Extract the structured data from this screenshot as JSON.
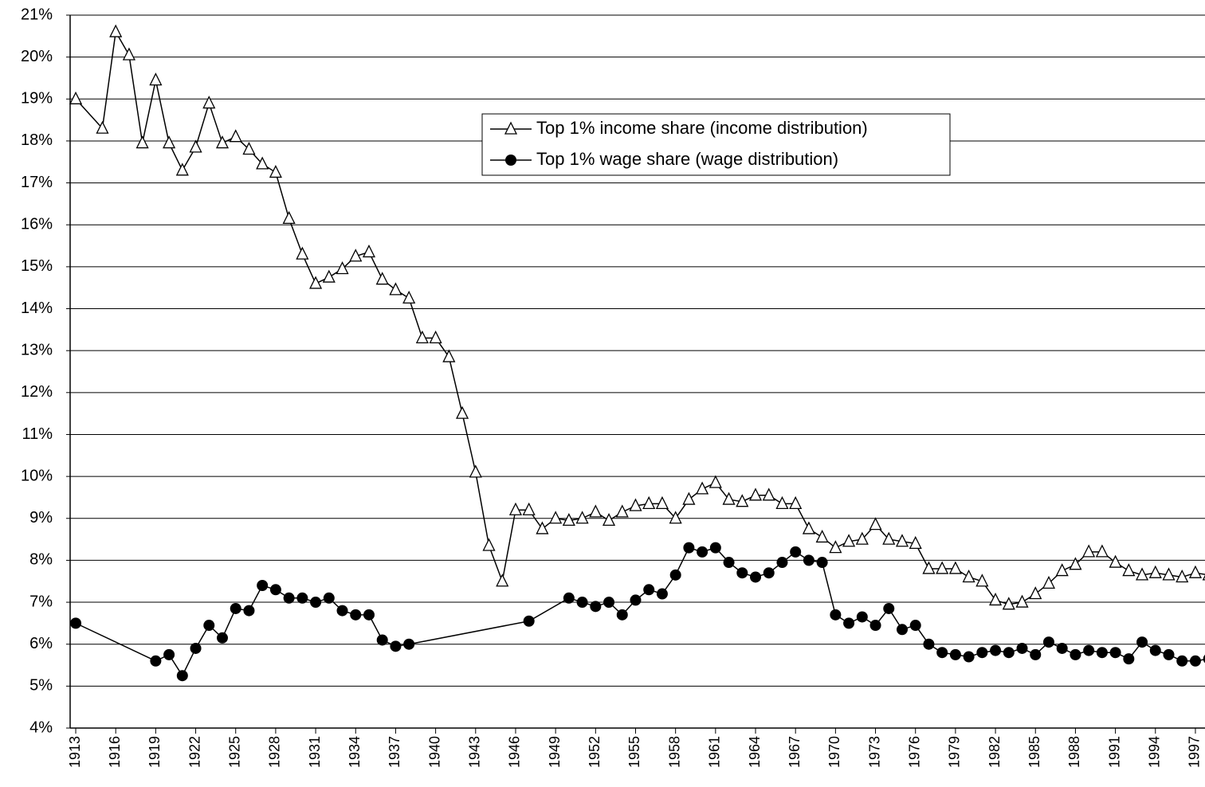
{
  "chart_data": {
    "type": "line",
    "ylim": [
      4,
      21
    ],
    "yticks": [
      {
        "value": 4,
        "label": "4%"
      },
      {
        "value": 5,
        "label": "5%"
      },
      {
        "value": 6,
        "label": "6%"
      },
      {
        "value": 7,
        "label": "7%"
      },
      {
        "value": 8,
        "label": "8%"
      },
      {
        "value": 9,
        "label": "9%"
      },
      {
        "value": 10,
        "label": "10%"
      },
      {
        "value": 11,
        "label": "11%"
      },
      {
        "value": 12,
        "label": "12%"
      },
      {
        "value": 13,
        "label": "13%"
      },
      {
        "value": 14,
        "label": "14%"
      },
      {
        "value": 15,
        "label": "15%"
      },
      {
        "value": 16,
        "label": "16%"
      },
      {
        "value": 17,
        "label": "17%"
      },
      {
        "value": 18,
        "label": "18%"
      },
      {
        "value": 19,
        "label": "19%"
      },
      {
        "value": 20,
        "label": "20%"
      },
      {
        "value": 21,
        "label": "21%"
      }
    ],
    "xlim": [
      1912.58,
      1997.72
    ],
    "xticks": [
      1913,
      1916,
      1919,
      1922,
      1925,
      1928,
      1931,
      1934,
      1937,
      1940,
      1943,
      1946,
      1949,
      1952,
      1955,
      1958,
      1961,
      1964,
      1967,
      1970,
      1973,
      1976,
      1979,
      1982,
      1985,
      1988,
      1991,
      1994,
      1997
    ],
    "grid": true,
    "legend": "top-center",
    "series": [
      {
        "name": "Top 1% income share (income distribution)",
        "color": "#000000",
        "marker": "triangle",
        "x": [
          1913,
          1915,
          1916,
          1917,
          1918,
          1919,
          1920,
          1921,
          1922,
          1923,
          1924,
          1925,
          1926,
          1927,
          1928,
          1929,
          1930,
          1931,
          1932,
          1933,
          1934,
          1935,
          1936,
          1937,
          1938,
          1939,
          1940,
          1941,
          1942,
          1943,
          1944,
          1945,
          1946,
          1947,
          1948,
          1949,
          1950,
          1951,
          1952,
          1953,
          1954,
          1955,
          1956,
          1957,
          1958,
          1959,
          1960,
          1961,
          1962,
          1963,
          1964,
          1965,
          1966,
          1967,
          1968,
          1969,
          1970,
          1971,
          1972,
          1973,
          1974,
          1975,
          1976,
          1977,
          1978,
          1979,
          1980,
          1981,
          1982,
          1983,
          1984,
          1985,
          1986,
          1987,
          1988,
          1989,
          1990,
          1991,
          1992,
          1993,
          1994,
          1995,
          1996,
          1997,
          1998
        ],
        "values": [
          19.0,
          18.3,
          20.6,
          20.05,
          17.95,
          19.45,
          17.95,
          17.3,
          17.85,
          18.9,
          17.95,
          18.1,
          17.8,
          17.45,
          17.25,
          16.15,
          15.3,
          14.6,
          14.75,
          14.95,
          15.25,
          15.35,
          14.7,
          14.45,
          14.25,
          13.3,
          13.3,
          12.85,
          11.5,
          10.1,
          8.35,
          7.5,
          9.2,
          9.2,
          8.75,
          9.0,
          8.95,
          9.0,
          9.15,
          8.95,
          9.15,
          9.3,
          9.35,
          9.35,
          9.0,
          9.45,
          9.7,
          9.85,
          9.45,
          9.4,
          9.55,
          9.55,
          9.35,
          9.35,
          8.75,
          8.55,
          8.3,
          8.45,
          8.5,
          8.85,
          8.5,
          8.45,
          8.4,
          7.8,
          7.8,
          7.8,
          7.6,
          7.5,
          7.05,
          6.95,
          7.0,
          7.2,
          7.45,
          7.75,
          7.9,
          8.2,
          8.2,
          7.95,
          7.75,
          7.65,
          7.7,
          7.65,
          7.6,
          7.7,
          7.65
        ]
      },
      {
        "name": "Top 1% wage share (wage distribution)",
        "color": "#000000",
        "marker": "circle",
        "x": [
          1913,
          1919,
          1920,
          1921,
          1922,
          1923,
          1924,
          1925,
          1926,
          1927,
          1928,
          1929,
          1930,
          1931,
          1932,
          1933,
          1934,
          1935,
          1936,
          1937,
          1938,
          1947,
          1950,
          1951,
          1952,
          1953,
          1954,
          1955,
          1956,
          1957,
          1958,
          1959,
          1960,
          1961,
          1962,
          1963,
          1964,
          1965,
          1966,
          1967,
          1968,
          1969,
          1970,
          1971,
          1972,
          1973,
          1974,
          1975,
          1976,
          1977,
          1978,
          1979,
          1980,
          1981,
          1982,
          1983,
          1984,
          1985,
          1986,
          1987,
          1988,
          1989,
          1990,
          1991,
          1992,
          1993,
          1994,
          1995,
          1996,
          1997,
          1998
        ],
        "values": [
          6.5,
          5.6,
          5.75,
          5.25,
          5.9,
          6.45,
          6.15,
          6.85,
          6.8,
          7.4,
          7.3,
          7.1,
          7.1,
          7.0,
          7.1,
          6.8,
          6.7,
          6.7,
          6.1,
          5.95,
          6.0,
          6.55,
          7.1,
          7.0,
          6.9,
          7.0,
          6.7,
          7.05,
          7.3,
          7.2,
          7.65,
          8.3,
          8.2,
          8.3,
          7.95,
          7.7,
          7.6,
          7.7,
          7.95,
          8.2,
          8.0,
          7.95,
          6.7,
          6.5,
          6.65,
          6.45,
          6.85,
          6.35,
          6.45,
          6.0,
          5.8,
          5.75,
          5.7,
          5.8,
          5.85,
          5.8,
          5.9,
          5.75,
          6.05,
          5.9,
          5.75,
          5.85,
          5.8,
          5.8,
          5.65,
          6.05,
          5.85,
          5.75,
          5.6,
          5.6,
          5.65
        ]
      }
    ]
  }
}
